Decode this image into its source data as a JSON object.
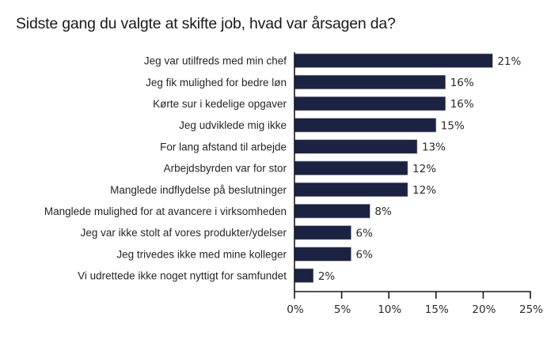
{
  "chart_data": {
    "type": "bar",
    "orientation": "horizontal",
    "title": "Sidste gang du valgte at skifte job, hvad var årsagen da?",
    "xlabel": "",
    "ylabel": "",
    "categories": [
      "Jeg var utilfreds med min chef",
      "Jeg fik mulighed for bedre løn",
      "Kørte sur i kedelige opgaver",
      "Jeg udviklede mig ikke",
      "For lang afstand til arbejde",
      "Arbejdsbyrden var for stor",
      "Manglede indflydelse på beslutninger",
      "Manglede mulighed for at avancere i virksomheden",
      "Jeg var ikke stolt af vores produkter/ydelser",
      "Jeg trivedes ikke med mine kolleger",
      "Vi udrettede ikke noget nyttigt for samfundet"
    ],
    "values": [
      21,
      16,
      16,
      15,
      13,
      12,
      12,
      8,
      6,
      6,
      2
    ],
    "value_labels": [
      "21%",
      "16%",
      "16%",
      "15%",
      "13%",
      "12%",
      "12%",
      "8%",
      "6%",
      "6%",
      "2%"
    ],
    "xlim": [
      0,
      25
    ],
    "x_ticks": [
      0,
      5,
      10,
      15,
      20,
      25
    ],
    "x_tick_labels": [
      "0%",
      "5%",
      "10%",
      "15%",
      "20%",
      "25%"
    ],
    "grid": false,
    "legend": "none",
    "colors": {
      "bar": "#1b2242",
      "bar_edge": "#9aa0b4",
      "axis": "#1a1a1a"
    }
  }
}
